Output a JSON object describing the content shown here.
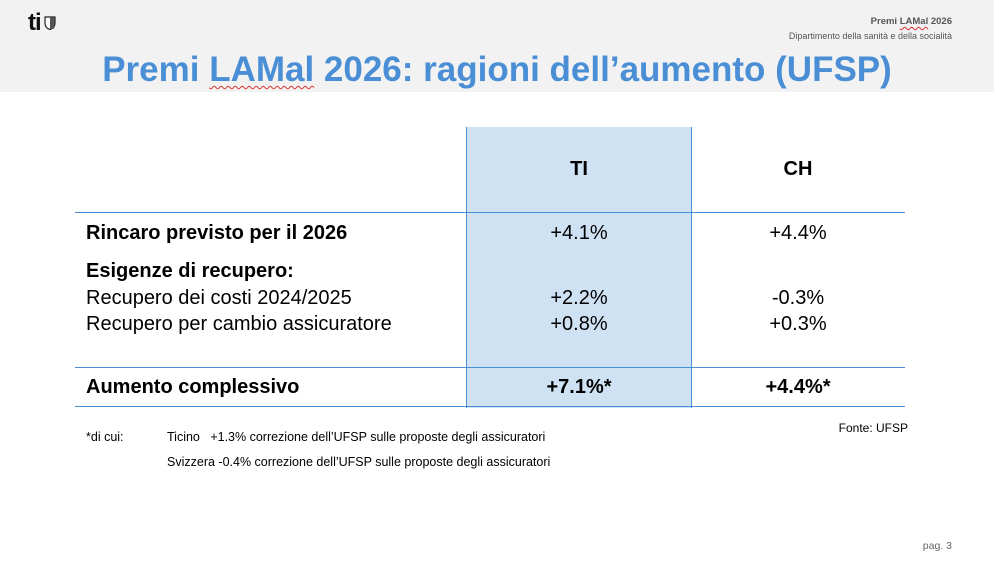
{
  "header": {
    "logo_text": "ti",
    "title_prefix": "Premi ",
    "title_underlined": "LAMal",
    "title_suffix": " 2026",
    "subtitle": "Dipartimento della sanità e della socialità"
  },
  "slide": {
    "title_prefix": "Premi ",
    "title_underlined": "LAMal",
    "title_suffix": " 2026: ragioni dell’aumento (UFSP)"
  },
  "table": {
    "headers": {
      "ti": "TI",
      "ch": "CH"
    },
    "rows": {
      "rincaro": {
        "label": "Rincaro previsto per il 2026",
        "ti": "+4.1%",
        "ch": "+4.4%"
      },
      "esigenze": {
        "label": "Esigenze di recupero:"
      },
      "recupero_costi": {
        "label": "Recupero dei costi 2024/2025",
        "ti": "+2.2%",
        "ch": "-0.3%"
      },
      "recupero_cambio": {
        "label": "Recupero per cambio assicuratore",
        "ti": "+0.8%",
        "ch": "+0.3%"
      },
      "totale": {
        "label": "Aumento complessivo",
        "ti": "+7.1%*",
        "ch": "+4.4%*"
      }
    }
  },
  "footnote": {
    "intro": "*di cui:",
    "line1_region": "Ticino",
    "line1_text": "+1.3% correzione dell’UFSP sulle proposte degli assicuratori",
    "line2_region": "Svizzera",
    "line2_text": "-0.4% correzione dell’UFSP sulle proposte degli assicuratori"
  },
  "source": "Fonte: UFSP",
  "page": "pag. 3",
  "colors": {
    "accent": "#4a8fd6",
    "ti_column": "#cfe2f3",
    "header_band": "#f2f2f2"
  }
}
